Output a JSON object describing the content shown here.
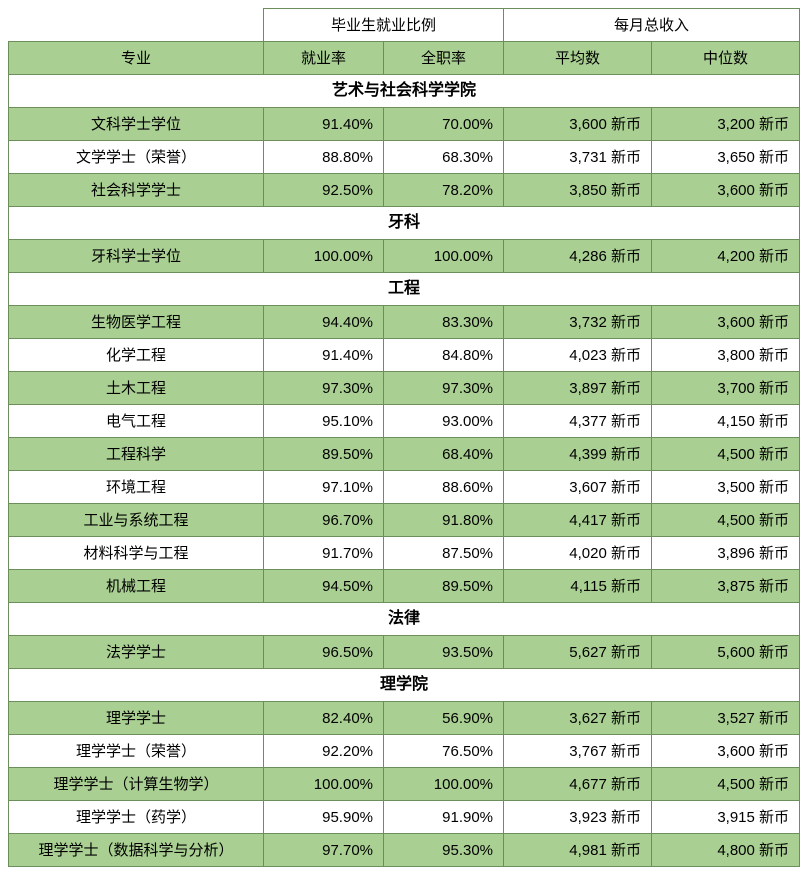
{
  "headers": {
    "group1": "毕业生就业比例",
    "group2": "每月总收入",
    "col1": "专业",
    "col2": "就业率",
    "col3": "全职率",
    "col4": "平均数",
    "col5": "中位数"
  },
  "colors": {
    "green": "#a9cf92",
    "white": "#ffffff",
    "border": "#6b8e5a"
  },
  "sections": [
    {
      "title": "艺术与社会科学学院",
      "rows": [
        {
          "major": "文科学士学位",
          "emp": "91.40%",
          "full": "70.00%",
          "mean": "3,600 新币",
          "median": "3,200 新币",
          "cls": "green"
        },
        {
          "major": "文学学士（荣誉）",
          "emp": "88.80%",
          "full": "68.30%",
          "mean": "3,731 新币",
          "median": "3,650 新币",
          "cls": "white"
        },
        {
          "major": "社会科学学士",
          "emp": "92.50%",
          "full": "78.20%",
          "mean": "3,850 新币",
          "median": "3,600 新币",
          "cls": "green"
        }
      ]
    },
    {
      "title": "牙科",
      "rows": [
        {
          "major": "牙科学士学位",
          "emp": "100.00%",
          "full": "100.00%",
          "mean": "4,286 新币",
          "median": "4,200 新币",
          "cls": "green"
        }
      ]
    },
    {
      "title": "工程",
      "rows": [
        {
          "major": "生物医学工程",
          "emp": "94.40%",
          "full": "83.30%",
          "mean": "3,732 新币",
          "median": "3,600 新币",
          "cls": "green"
        },
        {
          "major": "化学工程",
          "emp": "91.40%",
          "full": "84.80%",
          "mean": "4,023 新币",
          "median": "3,800 新币",
          "cls": "white"
        },
        {
          "major": "土木工程",
          "emp": "97.30%",
          "full": "97.30%",
          "mean": "3,897 新币",
          "median": "3,700 新币",
          "cls": "green"
        },
        {
          "major": "电气工程",
          "emp": "95.10%",
          "full": "93.00%",
          "mean": "4,377 新币",
          "median": "4,150 新币",
          "cls": "white"
        },
        {
          "major": "工程科学",
          "emp": "89.50%",
          "full": "68.40%",
          "mean": "4,399 新币",
          "median": "4,500 新币",
          "cls": "green"
        },
        {
          "major": "环境工程",
          "emp": "97.10%",
          "full": "88.60%",
          "mean": "3,607 新币",
          "median": "3,500 新币",
          "cls": "white"
        },
        {
          "major": "工业与系统工程",
          "emp": "96.70%",
          "full": "91.80%",
          "mean": "4,417 新币",
          "median": "4,500 新币",
          "cls": "green"
        },
        {
          "major": "材料科学与工程",
          "emp": "91.70%",
          "full": "87.50%",
          "mean": "4,020 新币",
          "median": "3,896 新币",
          "cls": "white"
        },
        {
          "major": "机械工程",
          "emp": "94.50%",
          "full": "89.50%",
          "mean": "4,115 新币",
          "median": "3,875 新币",
          "cls": "green"
        }
      ]
    },
    {
      "title": "法律",
      "rows": [
        {
          "major": "法学学士",
          "emp": "96.50%",
          "full": "93.50%",
          "mean": "5,627 新币",
          "median": "5,600 新币",
          "cls": "green"
        }
      ]
    },
    {
      "title": "理学院",
      "rows": [
        {
          "major": "理学学士",
          "emp": "82.40%",
          "full": "56.90%",
          "mean": "3,627 新币",
          "median": "3,527 新币",
          "cls": "green"
        },
        {
          "major": "理学学士（荣誉）",
          "emp": "92.20%",
          "full": "76.50%",
          "mean": "3,767 新币",
          "median": "3,600 新币",
          "cls": "white"
        },
        {
          "major": "理学学士（计算生物学）",
          "emp": "100.00%",
          "full": "100.00%",
          "mean": "4,677 新币",
          "median": "4,500 新币",
          "cls": "green"
        },
        {
          "major": "理学学士（药学）",
          "emp": "95.90%",
          "full": "91.90%",
          "mean": "3,923 新币",
          "median": "3,915 新币",
          "cls": "white"
        },
        {
          "major": "理学学士（数据科学与分析）",
          "emp": "97.70%",
          "full": "95.30%",
          "mean": "4,981 新币",
          "median": "4,800 新币",
          "cls": "green"
        }
      ]
    }
  ]
}
